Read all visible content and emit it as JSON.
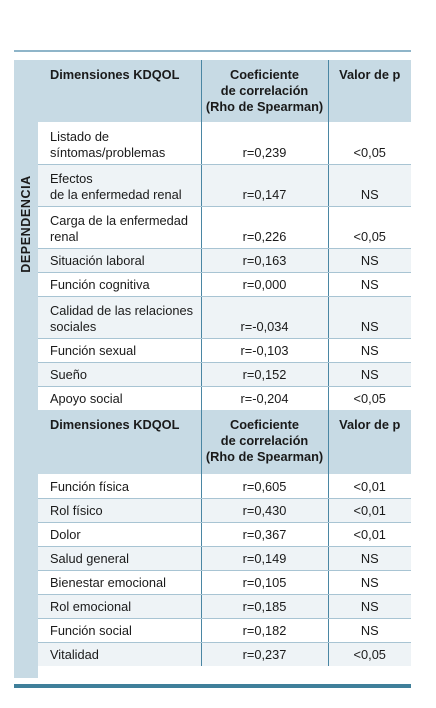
{
  "side_label": "DEPENDENCIA",
  "header": {
    "dim": "Dimensiones KDQOL",
    "coef_l1": "Coeficiente",
    "coef_l2": "de correlación",
    "coef_l3": "(Rho de Spearman)",
    "p": "Valor de p"
  },
  "rows1": [
    {
      "n1": "Listado de",
      "n2": "síntomas/problemas",
      "r": "r=0,239",
      "p": "<0,05"
    },
    {
      "n1": "Efectos",
      "n2": "de la enfermedad renal",
      "r": "r=0,147",
      "p": "NS"
    },
    {
      "n1": "Carga de la enfermedad",
      "n2": "renal",
      "r": "r=0,226",
      "p": "<0,05"
    },
    {
      "n1": "Situación laboral",
      "n2": "",
      "r": "r=0,163",
      "p": "NS"
    },
    {
      "n1": "Función cognitiva",
      "n2": "",
      "r": "r=0,000",
      "p": "NS"
    },
    {
      "n1": "Calidad de las relaciones",
      "n2": "sociales",
      "r": "r=-0,034",
      "p": "NS"
    },
    {
      "n1": "Función sexual",
      "n2": "",
      "r": "r=-0,103",
      "p": "NS"
    },
    {
      "n1": "Sueño",
      "n2": "",
      "r": "r=0,152",
      "p": "NS"
    },
    {
      "n1": "Apoyo social",
      "n2": "",
      "r": "r=-0,204",
      "p": "<0,05"
    }
  ],
  "rows2": [
    {
      "n1": "Función física",
      "r": "r=0,605",
      "p": "<0,01"
    },
    {
      "n1": "Rol físico",
      "r": "r=0,430",
      "p": "<0,01"
    },
    {
      "n1": "Dolor",
      "r": "r=0,367",
      "p": "<0,01"
    },
    {
      "n1": "Salud general",
      "r": "r=0,149",
      "p": "NS"
    },
    {
      "n1": "Bienestar emocional",
      "r": "r=0,105",
      "p": "NS"
    },
    {
      "n1": "Rol emocional",
      "r": "r=0,185",
      "p": "NS"
    },
    {
      "n1": "Función social",
      "r": "r=0,182",
      "p": "NS"
    },
    {
      "n1": "Vitalidad",
      "r": "r=0,237",
      "p": "<0,05"
    }
  ]
}
